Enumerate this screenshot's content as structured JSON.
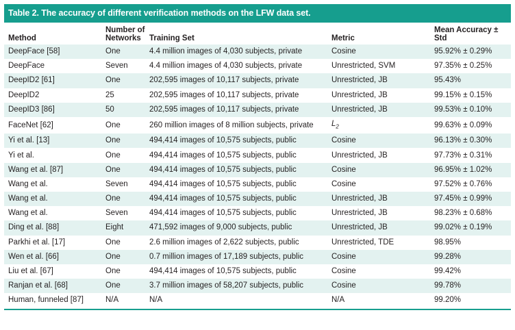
{
  "table": {
    "title": "Table 2. The accuracy of different verification methods on the LFW data set.",
    "headers": {
      "method": "Method",
      "networks_line1": "Number of",
      "networks_line2": "Networks",
      "training_set": "Training Set",
      "metric": "Metric",
      "accuracy": "Mean Accuracy ± Std"
    },
    "rows": [
      {
        "method": "DeepFace [58]",
        "networks": "One",
        "training_set": "4.4 million images of 4,030 subjects, private",
        "metric": "Cosine",
        "accuracy": "95.92% ± 0.29%"
      },
      {
        "method": "DeepFace",
        "networks": "Seven",
        "training_set": "4.4 million images of 4,030 subjects, private",
        "metric": "Unrestricted, SVM",
        "accuracy": "97.35% ± 0.25%"
      },
      {
        "method": "DeepID2 [61]",
        "networks": "One",
        "training_set": "202,595 images of 10,117 subjects, private",
        "metric": "Unrestricted, JB",
        "accuracy": "95.43%"
      },
      {
        "method": "DeepID2",
        "networks": "25",
        "training_set": "202,595 images of 10,117 subjects, private",
        "metric": "Unrestricted, JB",
        "accuracy": "99.15% ± 0.15%"
      },
      {
        "method": "DeepID3 [86]",
        "networks": "50",
        "training_set": "202,595 images of 10,117 subjects, private",
        "metric": "Unrestricted, JB",
        "accuracy": "99.53% ± 0.10%"
      },
      {
        "method": "FaceNet [62]",
        "networks": "One",
        "training_set": "260 million images of 8 million subjects, private",
        "metric": "L",
        "metric_sub": "2",
        "accuracy": "99.63% ± 0.09%"
      },
      {
        "method": "Yi et al. [13]",
        "networks": "One",
        "training_set": "494,414 images of 10,575 subjects, public",
        "metric": "Cosine",
        "accuracy": "96.13% ± 0.30%"
      },
      {
        "method": "Yi et al.",
        "networks": "One",
        "training_set": "494,414 images of 10,575 subjects, public",
        "metric": "Unrestricted, JB",
        "accuracy": "97.73% ± 0.31%"
      },
      {
        "method": "Wang et al. [87]",
        "networks": "One",
        "training_set": "494,414 images of 10,575 subjects, public",
        "metric": "Cosine",
        "accuracy": "96.95% ± 1.02%"
      },
      {
        "method": "Wang et al.",
        "networks": "Seven",
        "training_set": "494,414 images of 10,575 subjects, public",
        "metric": "Cosine",
        "accuracy": "97.52% ± 0.76%"
      },
      {
        "method": "Wang et al.",
        "networks": "One",
        "training_set": "494,414 images of 10,575 subjects, public",
        "metric": "Unrestricted, JB",
        "accuracy": "97.45% ± 0.99%"
      },
      {
        "method": "Wang et al.",
        "networks": "Seven",
        "training_set": "494,414 images of 10,575 subjects, public",
        "metric": "Unrestricted, JB",
        "accuracy": "98.23% ± 0.68%"
      },
      {
        "method": "Ding et al. [88]",
        "networks": "Eight",
        "training_set": "471,592 images of 9,000 subjects, public",
        "metric": "Unrestricted, JB",
        "accuracy": "99.02% ± 0.19%"
      },
      {
        "method": "Parkhi et al. [17]",
        "networks": "One",
        "training_set": "2.6 million images of 2,622 subjects, public",
        "metric": "Unrestricted, TDE",
        "accuracy": "98.95%"
      },
      {
        "method": "Wen et al. [66]",
        "networks": "One",
        "training_set": "0.7 million images of 17,189 subjects, public",
        "metric": "Cosine",
        "accuracy": "99.28%"
      },
      {
        "method": "Liu et al. [67]",
        "networks": "One",
        "training_set": "494,414 images of 10,575 subjects, public",
        "metric": "Cosine",
        "accuracy": "99.42%"
      },
      {
        "method": "Ranjan et al. [68]",
        "networks": "One",
        "training_set": "3.7 million images of 58,207 subjects, public",
        "metric": "Cosine",
        "accuracy": "99.78%"
      },
      {
        "method": "Human, funneled [87]",
        "networks": "N/A",
        "training_set": "N/A",
        "metric": "N/A",
        "accuracy": "99.20%"
      }
    ]
  },
  "colors": {
    "accent": "#169e8e",
    "stripe": "#e3f2f0",
    "text": "#231f20"
  }
}
